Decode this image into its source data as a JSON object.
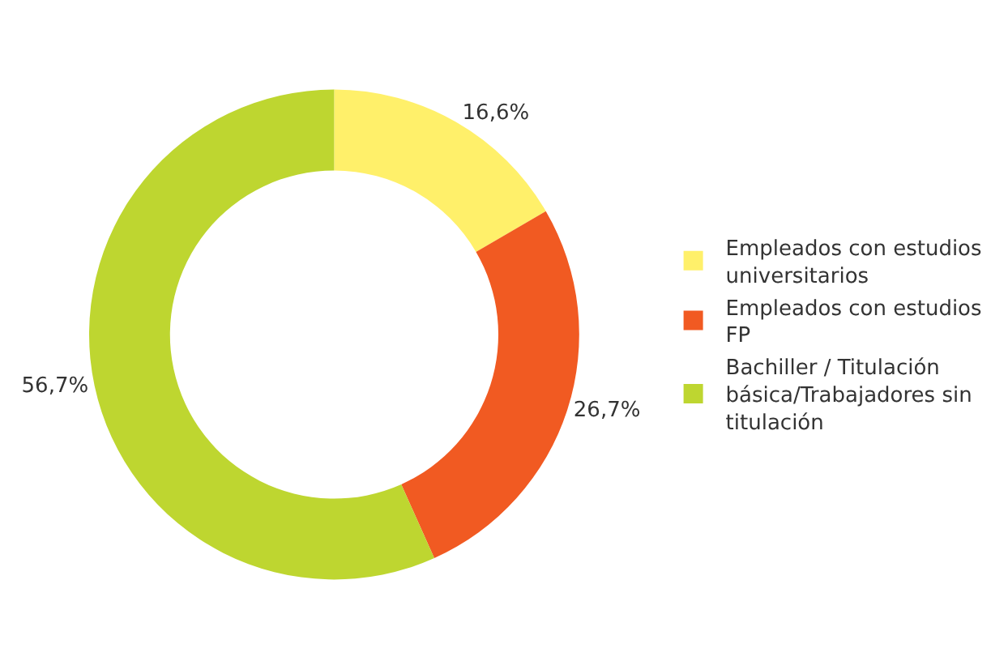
{
  "chart_data": {
    "type": "donut",
    "categories": [
      "Empleados con estudios universitarios",
      "Empleados con estudios FP",
      "Bachiller / Titulación básica/Trabajadores sin titulación"
    ],
    "values": [
      16.6,
      26.7,
      56.7
    ],
    "colors": [
      "#fff06a",
      "#f15a22",
      "#bed630"
    ],
    "value_labels": [
      "16,6%",
      "26,7%",
      "56,7%"
    ],
    "legend": "right"
  }
}
